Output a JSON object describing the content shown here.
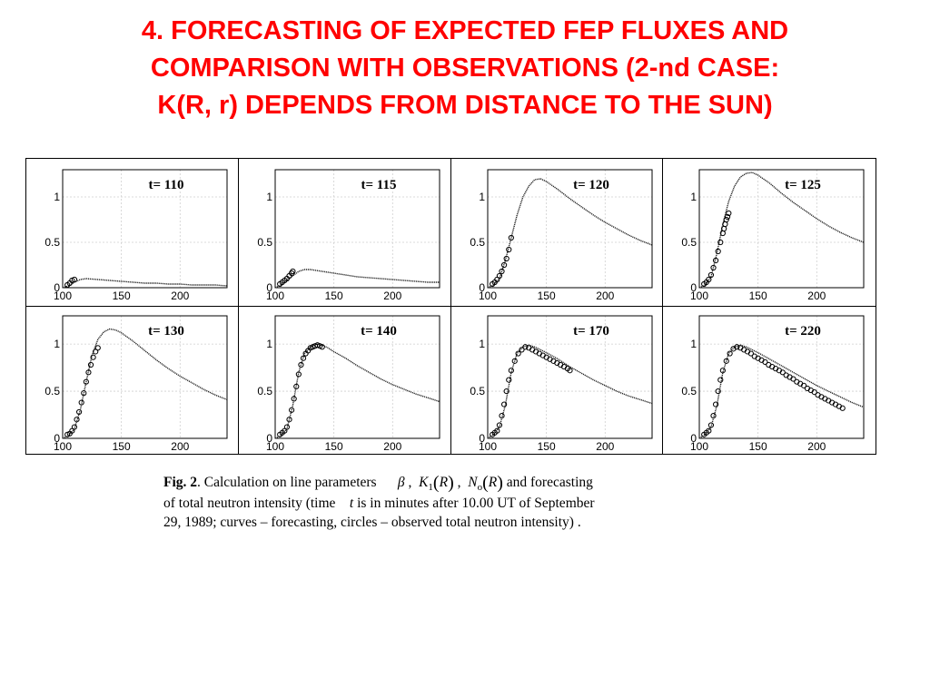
{
  "title": {
    "line1": "4. FORECASTING OF EXPECTED FEP FLUXES AND",
    "line2": "COMPARISON WITH OBSERVATIONS (2-nd CASE:",
    "line3": "K(R, r) DEPENDS FROM DISTANCE TO THE SUN)"
  },
  "caption": {
    "fig": "Fig. 2",
    "text1": ". Calculation on line parameters",
    "beta": "β",
    "comma": ",",
    "k": "K",
    "k_sub": "1",
    "r_arg": "R",
    "n": "N",
    "n_sub": "o",
    "text2": "and forecasting",
    "line2a": "of total neutron intensity (time",
    "t": "t",
    "line2b": "is in minutes after 10.00 UT of September",
    "line3": "29, 1989; curves   – forecasting,  circles  – observed total neutron intensity)    ."
  },
  "chart_data": [
    {
      "type": "line",
      "panel_label": "t= 110",
      "xlim": [
        100,
        240
      ],
      "ylim": [
        0,
        1.3
      ],
      "xticks": [
        "100",
        "150",
        "200"
      ],
      "yticks": [
        "0",
        "0.5",
        "1"
      ],
      "grid": true,
      "series": [
        {
          "x": [
            100,
            105,
            110,
            115,
            120,
            130,
            140,
            150,
            160,
            170,
            180,
            190,
            200,
            210,
            220,
            230,
            240
          ],
          "y": [
            0.0,
            0.02,
            0.06,
            0.09,
            0.1,
            0.09,
            0.08,
            0.07,
            0.06,
            0.05,
            0.05,
            0.04,
            0.04,
            0.03,
            0.03,
            0.03,
            0.02
          ]
        },
        {
          "x": [
            104,
            106,
            108,
            110
          ],
          "y": [
            0.03,
            0.05,
            0.08,
            0.09
          ]
        }
      ]
    },
    {
      "type": "line",
      "panel_label": "t= 115",
      "xlim": [
        100,
        240
      ],
      "ylim": [
        0,
        1.3
      ],
      "xticks": [
        "100",
        "150",
        "200"
      ],
      "yticks": [
        "0",
        "0.5",
        "1"
      ],
      "grid": true,
      "series": [
        {
          "x": [
            100,
            105,
            110,
            115,
            120,
            125,
            130,
            140,
            150,
            160,
            170,
            180,
            190,
            200,
            210,
            220,
            230,
            240
          ],
          "y": [
            0.0,
            0.03,
            0.08,
            0.13,
            0.18,
            0.2,
            0.2,
            0.18,
            0.16,
            0.14,
            0.12,
            0.11,
            0.1,
            0.09,
            0.08,
            0.07,
            0.06,
            0.06
          ]
        },
        {
          "x": [
            104,
            106,
            108,
            110,
            112,
            114,
            115
          ],
          "y": [
            0.04,
            0.06,
            0.08,
            0.1,
            0.13,
            0.16,
            0.18
          ]
        }
      ]
    },
    {
      "type": "line",
      "panel_label": "t= 120",
      "xlim": [
        100,
        240
      ],
      "ylim": [
        0,
        1.3
      ],
      "xticks": [
        "100",
        "150",
        "200"
      ],
      "yticks": [
        "0",
        "0.5",
        "1"
      ],
      "grid": true,
      "series": [
        {
          "x": [
            100,
            105,
            110,
            115,
            120,
            125,
            130,
            135,
            140,
            145,
            150,
            160,
            170,
            180,
            190,
            200,
            210,
            220,
            230,
            240
          ],
          "y": [
            0.0,
            0.03,
            0.1,
            0.3,
            0.55,
            0.8,
            1.0,
            1.12,
            1.19,
            1.2,
            1.17,
            1.08,
            0.98,
            0.89,
            0.8,
            0.72,
            0.65,
            0.58,
            0.52,
            0.47
          ]
        },
        {
          "x": [
            104,
            106,
            108,
            110,
            112,
            114,
            116,
            118,
            120
          ],
          "y": [
            0.04,
            0.06,
            0.09,
            0.13,
            0.18,
            0.25,
            0.32,
            0.42,
            0.55
          ]
        }
      ]
    },
    {
      "type": "line",
      "panel_label": "t= 125",
      "xlim": [
        100,
        240
      ],
      "ylim": [
        0,
        1.3
      ],
      "xticks": [
        "100",
        "150",
        "200"
      ],
      "yticks": [
        "0",
        "0.5",
        "1"
      ],
      "grid": true,
      "series": [
        {
          "x": [
            100,
            105,
            110,
            115,
            120,
            125,
            130,
            135,
            140,
            145,
            150,
            160,
            170,
            180,
            190,
            200,
            210,
            220,
            230,
            240
          ],
          "y": [
            0.0,
            0.03,
            0.12,
            0.38,
            0.7,
            0.95,
            1.12,
            1.22,
            1.26,
            1.27,
            1.24,
            1.15,
            1.04,
            0.94,
            0.85,
            0.76,
            0.68,
            0.61,
            0.55,
            0.5
          ]
        },
        {
          "x": [
            104,
            106,
            108,
            110,
            112,
            114,
            116,
            118,
            120,
            121,
            122,
            123,
            124,
            125
          ],
          "y": [
            0.04,
            0.06,
            0.09,
            0.14,
            0.22,
            0.3,
            0.4,
            0.5,
            0.6,
            0.65,
            0.7,
            0.75,
            0.78,
            0.82
          ]
        }
      ]
    },
    {
      "type": "line",
      "panel_label": "t= 130",
      "xlim": [
        100,
        240
      ],
      "ylim": [
        0,
        1.3
      ],
      "xticks": [
        "100",
        "150",
        "200"
      ],
      "yticks": [
        "0",
        "0.5",
        "1"
      ],
      "grid": true,
      "series": [
        {
          "x": [
            100,
            105,
            110,
            115,
            120,
            125,
            130,
            135,
            140,
            145,
            150,
            160,
            170,
            180,
            190,
            200,
            210,
            220,
            230,
            240
          ],
          "y": [
            0.0,
            0.03,
            0.1,
            0.3,
            0.6,
            0.88,
            1.05,
            1.13,
            1.16,
            1.15,
            1.12,
            1.03,
            0.93,
            0.83,
            0.74,
            0.66,
            0.59,
            0.52,
            0.46,
            0.41
          ]
        },
        {
          "x": [
            104,
            106,
            108,
            110,
            112,
            114,
            116,
            118,
            120,
            122,
            124,
            126,
            128,
            130
          ],
          "y": [
            0.04,
            0.05,
            0.08,
            0.12,
            0.2,
            0.28,
            0.38,
            0.48,
            0.6,
            0.7,
            0.78,
            0.86,
            0.92,
            0.96
          ]
        }
      ]
    },
    {
      "type": "line",
      "panel_label": "t= 140",
      "xlim": [
        100,
        240
      ],
      "ylim": [
        0,
        1.3
      ],
      "xticks": [
        "100",
        "150",
        "200"
      ],
      "yticks": [
        "0",
        "0.5",
        "1"
      ],
      "grid": true,
      "series": [
        {
          "x": [
            100,
            105,
            110,
            115,
            120,
            125,
            130,
            135,
            140,
            145,
            150,
            160,
            170,
            180,
            190,
            200,
            210,
            220,
            230,
            240
          ],
          "y": [
            0.0,
            0.03,
            0.1,
            0.35,
            0.7,
            0.9,
            0.97,
            1.0,
            0.99,
            0.96,
            0.92,
            0.85,
            0.77,
            0.7,
            0.63,
            0.57,
            0.52,
            0.47,
            0.43,
            0.39
          ]
        },
        {
          "x": [
            104,
            106,
            108,
            110,
            112,
            114,
            116,
            118,
            120,
            122,
            124,
            126,
            128,
            130,
            132,
            134,
            136,
            138,
            140
          ],
          "y": [
            0.04,
            0.06,
            0.08,
            0.12,
            0.2,
            0.3,
            0.42,
            0.55,
            0.68,
            0.78,
            0.85,
            0.9,
            0.93,
            0.96,
            0.97,
            0.98,
            0.99,
            0.98,
            0.97
          ]
        }
      ]
    },
    {
      "type": "line",
      "panel_label": "t= 170",
      "xlim": [
        100,
        240
      ],
      "ylim": [
        0,
        1.3
      ],
      "xticks": [
        "100",
        "150",
        "200"
      ],
      "yticks": [
        "0",
        "0.5",
        "1"
      ],
      "grid": true,
      "series": [
        {
          "x": [
            100,
            105,
            110,
            115,
            120,
            125,
            130,
            135,
            140,
            150,
            160,
            170,
            180,
            190,
            200,
            210,
            220,
            230,
            240
          ],
          "y": [
            0.0,
            0.04,
            0.12,
            0.35,
            0.7,
            0.9,
            0.97,
            0.99,
            0.97,
            0.91,
            0.84,
            0.76,
            0.69,
            0.62,
            0.56,
            0.5,
            0.45,
            0.41,
            0.37
          ]
        },
        {
          "x": [
            104,
            106,
            108,
            110,
            112,
            114,
            116,
            118,
            120,
            123,
            126,
            129,
            132,
            135,
            138,
            141,
            144,
            147,
            150,
            153,
            156,
            159,
            162,
            165,
            168,
            170
          ],
          "y": [
            0.04,
            0.06,
            0.08,
            0.14,
            0.24,
            0.36,
            0.5,
            0.62,
            0.72,
            0.82,
            0.9,
            0.94,
            0.97,
            0.96,
            0.94,
            0.92,
            0.9,
            0.88,
            0.86,
            0.84,
            0.82,
            0.8,
            0.78,
            0.76,
            0.74,
            0.72
          ]
        }
      ]
    },
    {
      "type": "line",
      "panel_label": "t= 220",
      "xlim": [
        100,
        240
      ],
      "ylim": [
        0,
        1.3
      ],
      "xticks": [
        "100",
        "150",
        "200"
      ],
      "yticks": [
        "0",
        "0.5",
        "1"
      ],
      "grid": true,
      "series": [
        {
          "x": [
            100,
            105,
            110,
            115,
            120,
            125,
            130,
            135,
            140,
            150,
            160,
            170,
            180,
            190,
            200,
            210,
            220,
            230,
            240
          ],
          "y": [
            0.0,
            0.04,
            0.12,
            0.35,
            0.7,
            0.9,
            0.97,
            0.99,
            0.97,
            0.91,
            0.84,
            0.77,
            0.7,
            0.63,
            0.56,
            0.5,
            0.44,
            0.38,
            0.33
          ]
        },
        {
          "x": [
            104,
            106,
            108,
            110,
            112,
            114,
            116,
            118,
            120,
            123,
            126,
            129,
            132,
            135,
            138,
            141,
            144,
            147,
            150,
            153,
            156,
            159,
            162,
            165,
            168,
            171,
            174,
            177,
            180,
            183,
            186,
            189,
            192,
            195,
            198,
            201,
            204,
            207,
            210,
            213,
            216,
            219,
            222
          ],
          "y": [
            0.04,
            0.06,
            0.08,
            0.14,
            0.24,
            0.36,
            0.5,
            0.62,
            0.72,
            0.82,
            0.9,
            0.95,
            0.97,
            0.96,
            0.94,
            0.92,
            0.9,
            0.87,
            0.85,
            0.83,
            0.81,
            0.78,
            0.76,
            0.74,
            0.72,
            0.7,
            0.67,
            0.65,
            0.63,
            0.6,
            0.58,
            0.56,
            0.53,
            0.51,
            0.49,
            0.46,
            0.44,
            0.42,
            0.4,
            0.38,
            0.36,
            0.34,
            0.32
          ]
        }
      ]
    }
  ]
}
